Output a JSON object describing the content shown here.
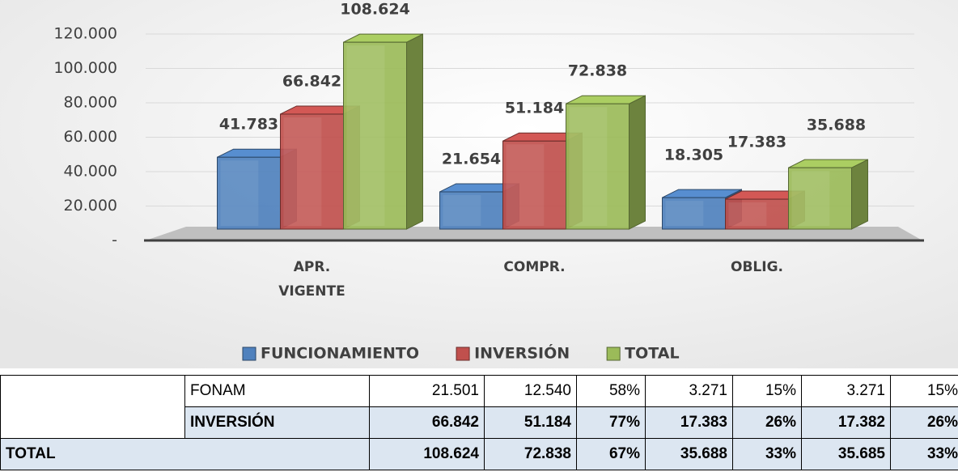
{
  "chart_data": {
    "type": "bar3d",
    "categories": [
      "APR. VIGENTE",
      "COMPR.",
      "OBLIG."
    ],
    "series": [
      {
        "name": "FUNCIONAMIENTO",
        "color": "#4f81bd",
        "values": [
          41783,
          21654,
          18305
        ],
        "value_labels": [
          "41.783",
          "21.654",
          "18.305"
        ]
      },
      {
        "name": "INVERSIÓN",
        "color": "#c0504d",
        "values": [
          66842,
          51184,
          17383
        ],
        "value_labels": [
          "66.842",
          "51.184",
          "17.383"
        ]
      },
      {
        "name": "TOTAL",
        "color": "#9bbb59",
        "values": [
          108624,
          72838,
          35688
        ],
        "value_labels": [
          "108.624",
          "72.838",
          "35.688"
        ]
      }
    ],
    "ylim": [
      0,
      120000
    ],
    "yticks": [
      {
        "value": 0,
        "label": "-"
      },
      {
        "value": 20000,
        "label": "20.000"
      },
      {
        "value": 40000,
        "label": "40.000"
      },
      {
        "value": 60000,
        "label": "60.000"
      },
      {
        "value": 80000,
        "label": "80.000"
      },
      {
        "value": 100000,
        "label": "100.000"
      },
      {
        "value": 120000,
        "label": "120.000"
      }
    ],
    "grid": true,
    "legend": "bottom"
  },
  "table": {
    "rows": [
      [
        "FONAM",
        "21.501",
        "12.540",
        "58%",
        "3.271",
        "15%",
        "3.271",
        "15%"
      ],
      [
        "INVERSIÓN",
        "66.842",
        "51.184",
        "77%",
        "17.383",
        "26%",
        "17.382",
        "26%"
      ],
      [
        "TOTAL",
        "108.624",
        "72.838",
        "67%",
        "35.688",
        "33%",
        "35.685",
        "33%"
      ]
    ]
  }
}
